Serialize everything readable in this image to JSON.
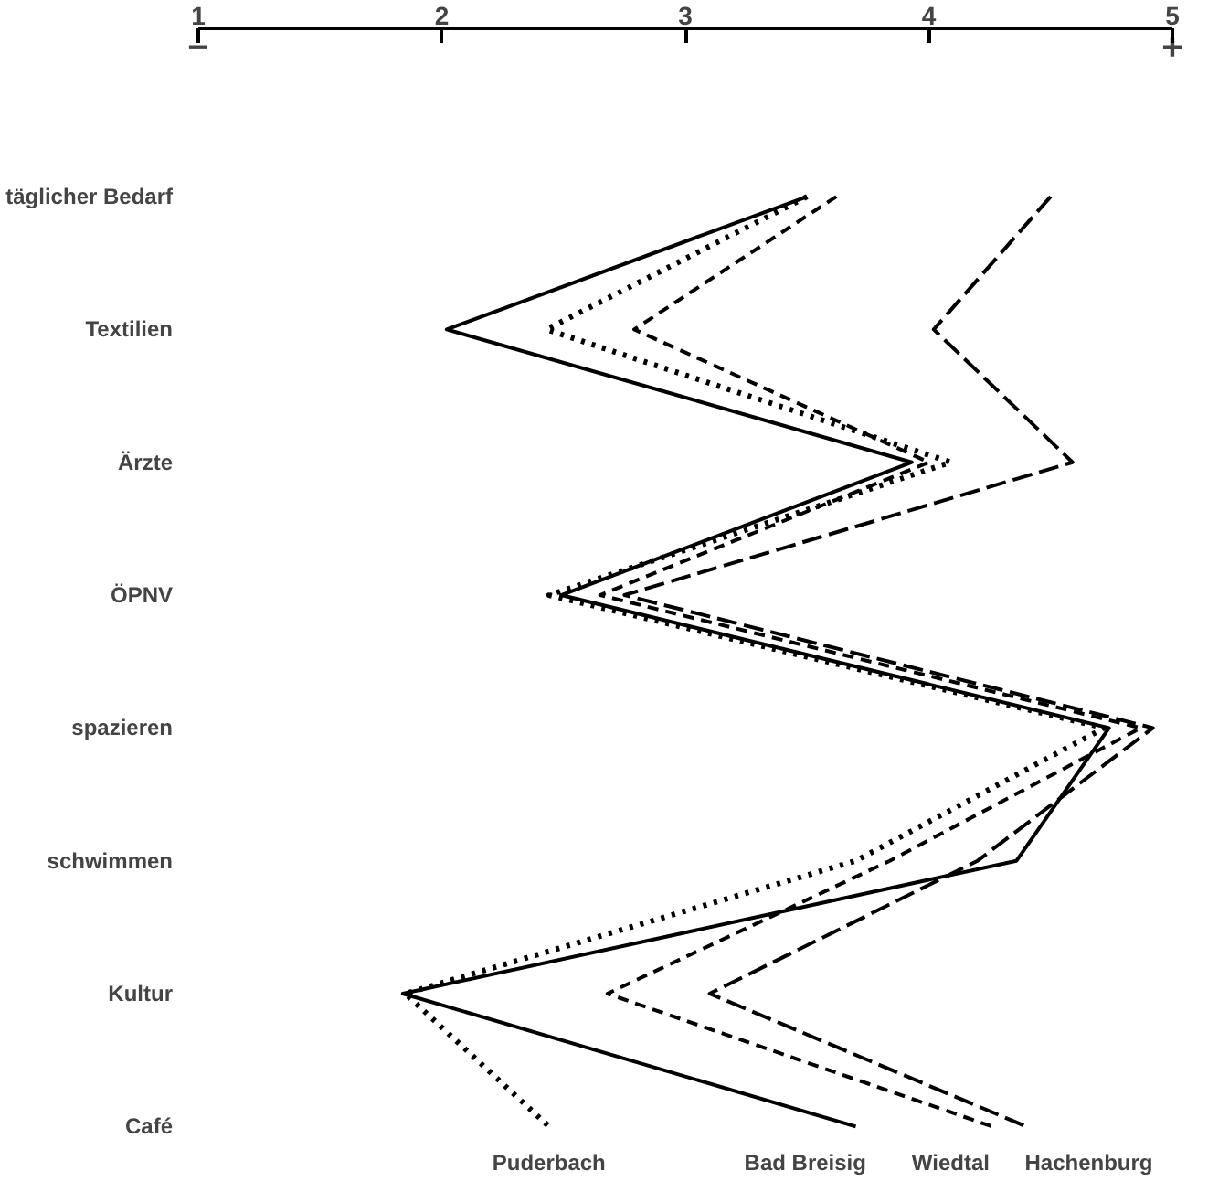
{
  "chart_data": {
    "type": "line",
    "orientation": "horizontal",
    "categories": [
      "täglicher Bedarf",
      "Textilien",
      "Ärzte",
      "ÖPNV",
      "spazieren",
      "schwimmen",
      "Kultur",
      "Café"
    ],
    "xlim": [
      1,
      5
    ],
    "xticks": [
      1,
      2,
      3,
      4,
      5
    ],
    "grid": false,
    "marker": "none",
    "annotations": [
      "−",
      "+"
    ],
    "series": [
      {
        "name": "Puderbach",
        "color": "#000000",
        "line_style": "dotted",
        "values": [
          3.5,
          2.43,
          4.09,
          2.44,
          4.72,
          3.7,
          1.85,
          2.44
        ]
      },
      {
        "name": "Bad Breisig",
        "color": "#000000",
        "line_style": "solid",
        "values": [
          3.5,
          2.02,
          3.93,
          2.49,
          4.74,
          4.36,
          1.84,
          3.7
        ]
      },
      {
        "name": "Wiedtal",
        "color": "#000000",
        "line_style": "dashed",
        "values": [
          3.62,
          2.79,
          4.0,
          2.65,
          4.87,
          3.84,
          2.68,
          4.26
        ]
      },
      {
        "name": "Hachenburg",
        "color": "#000000",
        "line_style": "longdash",
        "values": [
          4.5,
          4.02,
          4.59,
          2.75,
          4.92,
          4.2,
          3.1,
          4.4
        ]
      }
    ]
  }
}
